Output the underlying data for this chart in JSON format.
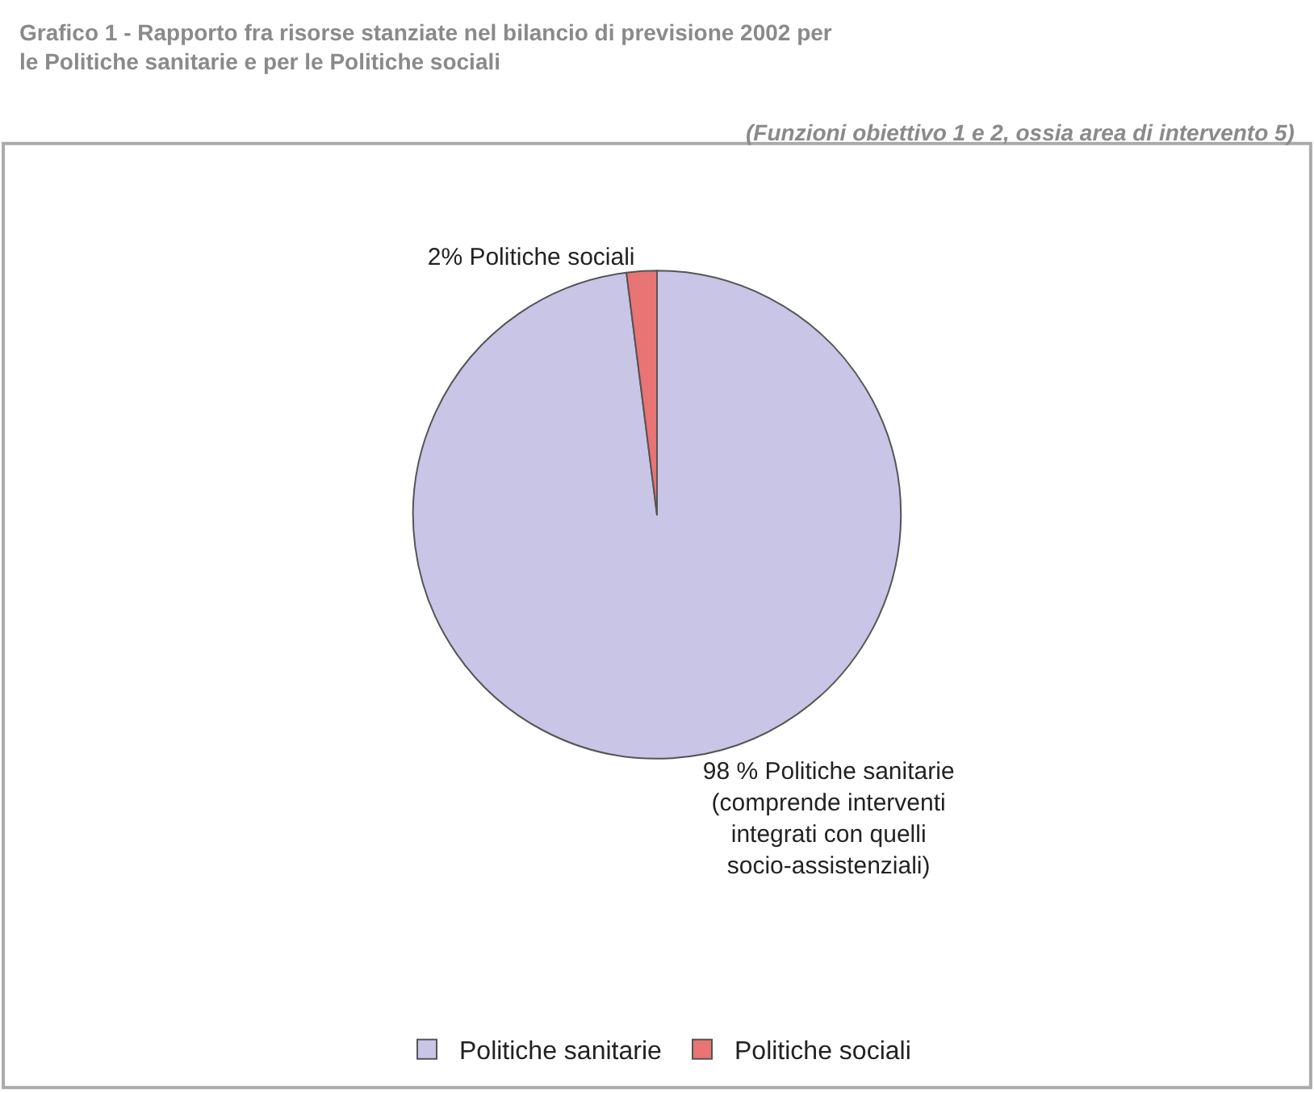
{
  "chart_data": {
    "type": "pie",
    "title": "Grafico 1 - Rapporto fra risorse stanziate nel bilancio di previsione 2002 per le Politiche sanitarie e per le Politiche sociali",
    "subtitle": "(Funzioni obiettivo 1 e 2, ossia area di intervento 5)",
    "categories": [
      "Politiche sanitarie",
      "Politiche sociali"
    ],
    "values": [
      98,
      2
    ],
    "colors": [
      "#c9c5e6",
      "#e87474"
    ],
    "value_labels": [
      "98 % Politiche sanitarie\n(comprende interventi\nintegrati con quelli\nsocio-assistenziali)",
      "2% Politiche sociali"
    ],
    "legend": "bottom"
  }
}
